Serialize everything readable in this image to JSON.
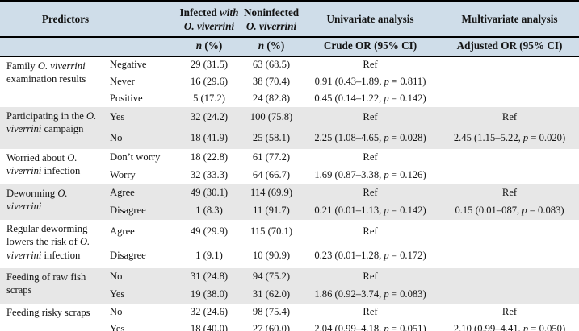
{
  "table": {
    "colors": {
      "header_bg": "#cfdde9",
      "band_bg": "#e7e7e7",
      "border": "#000000"
    },
    "header_row1": [
      "Predictors",
      "Infected with O. viverrini",
      "Noninfected O. viverrini",
      "Univariate analysis",
      "Multivariate analysis"
    ],
    "header_row2": [
      "",
      "n (%)",
      "n (%)",
      "Crude OR (95% CI)",
      "Adjusted OR (95% CI)"
    ],
    "groups": [
      {
        "predictor": "Family O. viverrini examination results",
        "rows": [
          {
            "category": "Negative",
            "infected": "29 (31.5)",
            "noninfected": "63 (68.5)",
            "crude": "Ref",
            "adjusted": ""
          },
          {
            "category": "Never",
            "infected": "16 (29.6)",
            "noninfected": "38 (70.4)",
            "crude": "0.91 (0.43–1.89, p = 0.811)",
            "adjusted": ""
          },
          {
            "category": "Positive",
            "infected": "5 (17.2)",
            "noninfected": "24 (82.8)",
            "crude": "0.45 (0.14–1.22, p = 0.142)",
            "adjusted": ""
          }
        ]
      },
      {
        "predictor": "Participating in the O. viverrini campaign",
        "rows": [
          {
            "category": "Yes",
            "infected": "32 (24.2)",
            "noninfected": "100 (75.8)",
            "crude": "Ref",
            "adjusted": "Ref"
          },
          {
            "category": "No",
            "infected": "18 (41.9)",
            "noninfected": "25 (58.1)",
            "crude": "2.25 (1.08–4.65, p = 0.028)",
            "adjusted": "2.45 (1.15–5.22, p = 0.020)"
          }
        ]
      },
      {
        "predictor": "Worried about O. viverrini infection",
        "rows": [
          {
            "category": "Don’t worry",
            "infected": "18 (22.8)",
            "noninfected": "61 (77.2)",
            "crude": "Ref",
            "adjusted": ""
          },
          {
            "category": "Worry",
            "infected": "32 (33.3)",
            "noninfected": "64 (66.7)",
            "crude": "1.69 (0.87–3.38, p = 0.126)",
            "adjusted": ""
          }
        ]
      },
      {
        "predictor": "Deworming O. viverrini",
        "rows": [
          {
            "category": "Agree",
            "infected": "49 (30.1)",
            "noninfected": "114 (69.9)",
            "crude": "Ref",
            "adjusted": "Ref"
          },
          {
            "category": "Disagree",
            "infected": "1 (8.3)",
            "noninfected": "11 (91.7)",
            "crude": "0.21 (0.01–1.13, p = 0.142)",
            "adjusted": "0.15 (0.01–087, p = 0.083)"
          }
        ]
      },
      {
        "predictor": "Regular deworming lowers the risk of O. viverrini infection",
        "rows": [
          {
            "category": "Agree",
            "infected": "49 (29.9)",
            "noninfected": "115 (70.1)",
            "crude": "Ref",
            "adjusted": ""
          },
          {
            "category": "Disagree",
            "infected": "1 (9.1)",
            "noninfected": "10 (90.9)",
            "crude": "0.23 (0.01–1.28, p = 0.172)",
            "adjusted": ""
          }
        ]
      },
      {
        "predictor": "Feeding of raw fish scraps",
        "rows": [
          {
            "category": "No",
            "infected": "31 (24.8)",
            "noninfected": "94 (75.2)",
            "crude": "Ref",
            "adjusted": ""
          },
          {
            "category": "Yes",
            "infected": "19 (38.0)",
            "noninfected": "31 (62.0)",
            "crude": "1.86 (0.92–3.74, p = 0.083)",
            "adjusted": ""
          }
        ]
      },
      {
        "predictor": "Feeding risky scraps",
        "rows": [
          {
            "category": "No",
            "infected": "32 (24.6)",
            "noninfected": "98 (75.4)",
            "crude": "Ref",
            "adjusted": "Ref"
          },
          {
            "category": "Yes",
            "infected": "18 (40.0)",
            "noninfected": "27 (60.0)",
            "crude": "2.04 (0.99–4.18, p = 0.051)",
            "adjusted": "2.10 (0.99–4.41, p = 0.050)"
          }
        ]
      }
    ]
  }
}
